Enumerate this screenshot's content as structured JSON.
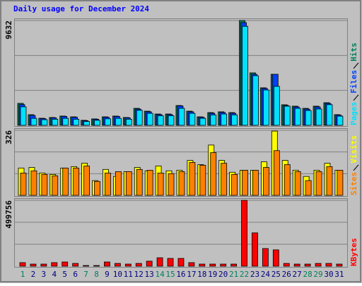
{
  "chart_data": [
    {
      "type": "bar",
      "title": "Daily usage for December 2024",
      "ylim": [
        0,
        9632
      ],
      "yticks": [
        9632
      ],
      "series": [
        {
          "name": "Hits",
          "color": "#00805c",
          "values": [
            2020,
            980,
            650,
            720,
            850,
            780,
            460,
            590,
            780,
            850,
            720,
            1560,
            1300,
            1040,
            1040,
            1820,
            1300,
            780,
            1170,
            1240,
            1170,
            9632,
            4820,
            3450,
            4690,
            1890,
            1760,
            1560,
            1760,
            2080,
            980
          ]
        },
        {
          "name": "Files",
          "color": "#0040ff",
          "values": [
            1900,
            900,
            620,
            690,
            820,
            740,
            430,
            560,
            740,
            820,
            690,
            1490,
            1240,
            990,
            990,
            1780,
            1240,
            740,
            1110,
            1180,
            1110,
            9440,
            4690,
            3380,
            4690,
            1820,
            1690,
            1490,
            1690,
            2010,
            930
          ]
        },
        {
          "name": "Pages",
          "color": "#00e0ff",
          "values": [
            1700,
            640,
            520,
            560,
            640,
            560,
            350,
            460,
            600,
            640,
            560,
            1380,
            1100,
            880,
            880,
            1560,
            1100,
            640,
            960,
            1040,
            960,
            9100,
            4560,
            3250,
            3580,
            1760,
            1560,
            1360,
            1500,
            1900,
            840
          ]
        }
      ]
    },
    {
      "type": "bar",
      "ylim": [
        0,
        326
      ],
      "yticks": [
        326
      ],
      "series": [
        {
          "name": "Visits",
          "color": "#ffff00",
          "values": [
            137,
            140,
            112,
            105,
            137,
            144,
            161,
            74,
            130,
            95,
            119,
            140,
            123,
            147,
            123,
            126,
            175,
            154,
            252,
            175,
            116,
            126,
            126,
            168,
            322,
            175,
            126,
            95,
            126,
            161,
            126
          ]
        },
        {
          "name": "Sites",
          "color": "#ff8000",
          "values": [
            112,
            123,
            105,
            98,
            137,
            137,
            147,
            70,
            112,
            119,
            119,
            130,
            126,
            112,
            109,
            119,
            165,
            151,
            214,
            161,
            105,
            126,
            126,
            140,
            224,
            154,
            119,
            74,
            119,
            144,
            126
          ]
        }
      ]
    },
    {
      "type": "bar",
      "ylim": [
        0,
        499756
      ],
      "yticks": [
        499756
      ],
      "categories": [
        "1",
        "2",
        "3",
        "4",
        "5",
        "6",
        "7",
        "8",
        "9",
        "10",
        "11",
        "12",
        "13",
        "14",
        "15",
        "16",
        "17",
        "18",
        "19",
        "20",
        "21",
        "22",
        "23",
        "24",
        "25",
        "26",
        "27",
        "28",
        "29",
        "30",
        "31"
      ],
      "label_colors": [
        "#00805c",
        "#000080",
        "#000080",
        "#000080",
        "#000080",
        "#000080",
        "#00805c",
        "#00805c",
        "#000080",
        "#000080",
        "#000080",
        "#000080",
        "#000080",
        "#00805c",
        "#00805c",
        "#000080",
        "#000080",
        "#000080",
        "#000080",
        "#000080",
        "#00805c",
        "#00805c",
        "#000080",
        "#000080",
        "#000080",
        "#000080",
        "#000080",
        "#00805c",
        "#00805c",
        "#000080",
        "#000080"
      ],
      "series": [
        {
          "name": "KBytes",
          "color": "#ff0000",
          "values": [
            27000,
            16000,
            16000,
            27000,
            32000,
            21000,
            5000,
            5000,
            32000,
            21000,
            16000,
            21000,
            38000,
            64000,
            59000,
            59000,
            27000,
            16000,
            16000,
            16000,
            16000,
            499756,
            253000,
            134000,
            124000,
            21000,
            16000,
            16000,
            21000,
            21000,
            16000
          ]
        }
      ]
    }
  ]
}
